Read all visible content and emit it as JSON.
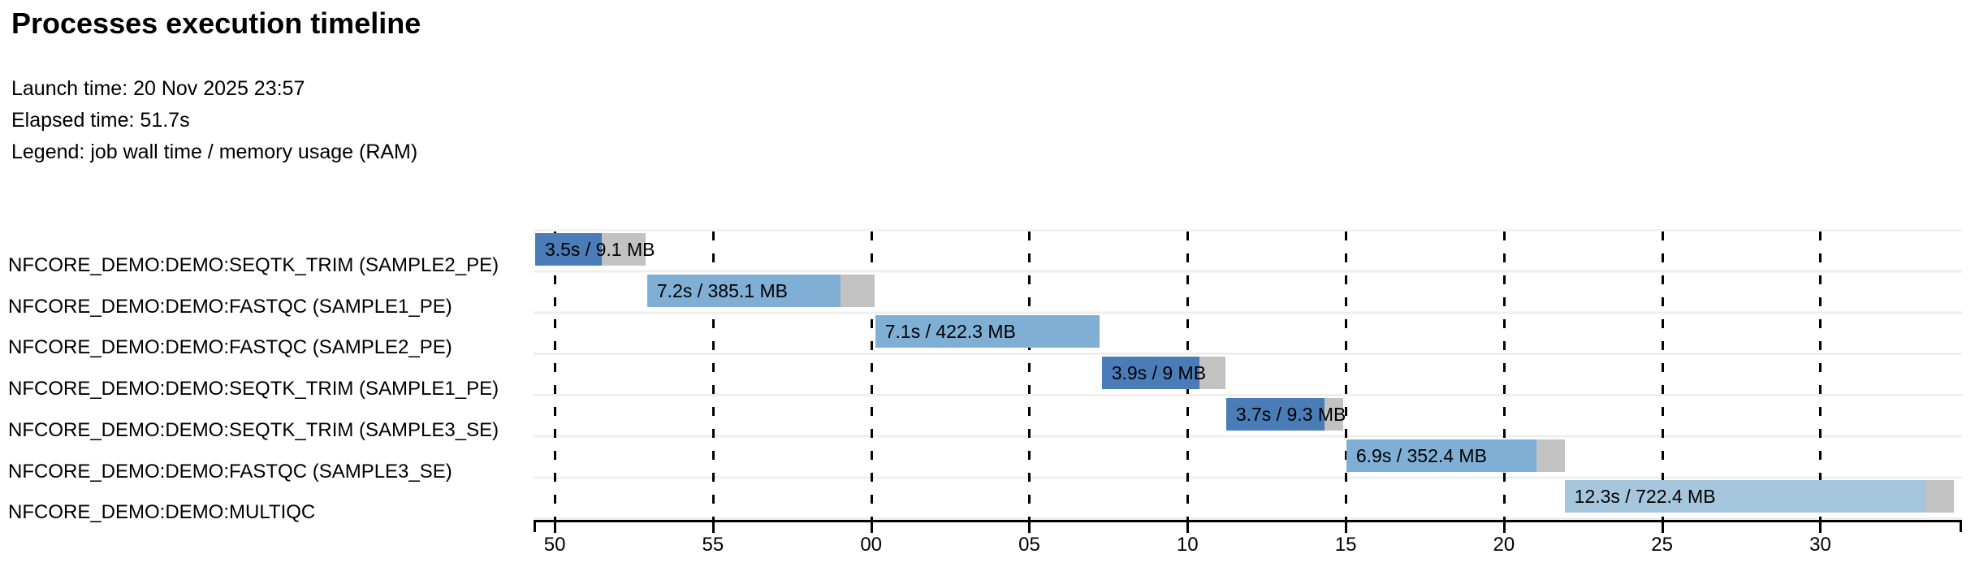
{
  "page": {
    "title": "Processes execution timeline",
    "launch_time": "Launch time: 20 Nov 2025 23:57",
    "elapsed_time": "Elapsed time: 51.7s",
    "legend": "Legend: job wall time / memory usage (RAM)"
  },
  "chart_data": {
    "type": "gantt-timeline",
    "title": "Processes execution timeline",
    "launch_time": "20 Nov 2025 23:57",
    "elapsed_time_s": 51.7,
    "legend": "job wall time / memory usage (RAM)",
    "axis": {
      "unit": "clock seconds (ss), minute rolls over at 00",
      "start_s": 0,
      "end_s": 45.15,
      "grid": "dashed-vertical",
      "ticks": [
        {
          "label": "50",
          "t": 0.67
        },
        {
          "label": "55",
          "t": 5.67
        },
        {
          "label": "00",
          "t": 10.67
        },
        {
          "label": "05",
          "t": 15.67
        },
        {
          "label": "10",
          "t": 20.67
        },
        {
          "label": "15",
          "t": 25.67
        },
        {
          "label": "20",
          "t": 30.67
        },
        {
          "label": "25",
          "t": 35.67
        },
        {
          "label": "30",
          "t": 40.67
        }
      ]
    },
    "colors": {
      "SEQTK_TRIM": "#4a7cb7",
      "FASTQC": "#7fafd5",
      "MULTIQC": "#a6c6dd",
      "tail_gray": "#c2c2c2",
      "row_separator": "#efefef",
      "axis_black": "#000000"
    },
    "tasks": [
      {
        "name": "NFCORE_DEMO:DEMO:SEQTK_TRIM (SAMPLE2_PE)",
        "label": "3.5s / 9.1 MB",
        "wall_time_s": 3.5,
        "memory": "9.1 MB",
        "start_s": 0.05,
        "run_s": 2.1,
        "color": "SEQTK_TRIM"
      },
      {
        "name": "NFCORE_DEMO:DEMO:FASTQC (SAMPLE1_PE)",
        "label": "7.2s / 385.1 MB",
        "wall_time_s": 7.2,
        "memory": "385.1 MB",
        "start_s": 3.59,
        "run_s": 6.1,
        "color": "FASTQC"
      },
      {
        "name": "NFCORE_DEMO:DEMO:FASTQC (SAMPLE2_PE)",
        "label": "7.1s / 422.3 MB",
        "wall_time_s": 7.1,
        "memory": "422.3 MB",
        "start_s": 10.8,
        "run_s": 7.1,
        "color": "FASTQC"
      },
      {
        "name": "NFCORE_DEMO:DEMO:SEQTK_TRIM (SAMPLE1_PE)",
        "label": "3.9s / 9 MB",
        "wall_time_s": 3.9,
        "memory": "9 MB",
        "start_s": 17.96,
        "run_s": 3.1,
        "color": "SEQTK_TRIM"
      },
      {
        "name": "NFCORE_DEMO:DEMO:SEQTK_TRIM (SAMPLE3_SE)",
        "label": "3.7s / 9.3 MB",
        "wall_time_s": 3.7,
        "memory": "9.3 MB",
        "start_s": 21.89,
        "run_s": 3.1,
        "color": "SEQTK_TRIM"
      },
      {
        "name": "NFCORE_DEMO:DEMO:FASTQC (SAMPLE3_SE)",
        "label": "6.9s / 352.4 MB",
        "wall_time_s": 6.9,
        "memory": "352.4 MB",
        "start_s": 25.69,
        "run_s": 6.0,
        "color": "FASTQC"
      },
      {
        "name": "NFCORE_DEMO:DEMO:MULTIQC",
        "label": "12.3s / 722.4 MB",
        "wall_time_s": 12.3,
        "memory": "722.4 MB",
        "start_s": 32.59,
        "run_s": 11.4,
        "color": "MULTIQC"
      }
    ]
  }
}
